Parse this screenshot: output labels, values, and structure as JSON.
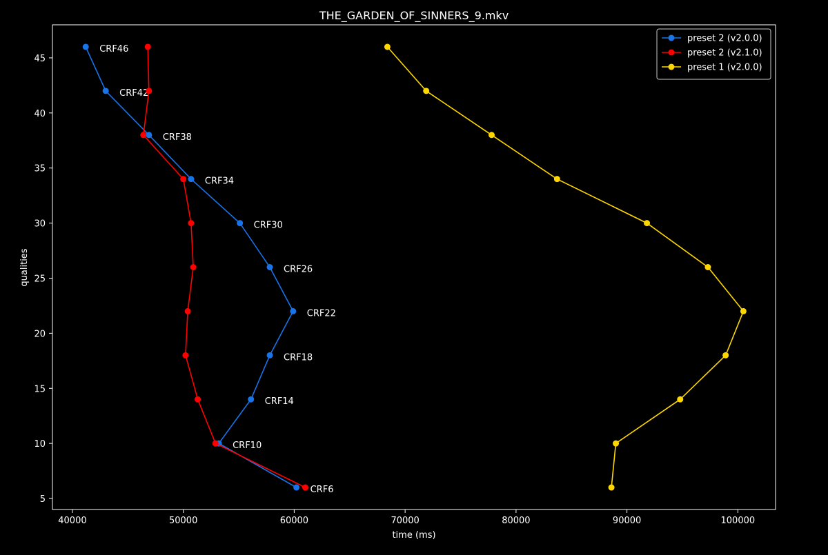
{
  "chart_data": {
    "type": "line",
    "title": "THE_GARDEN_OF_SINNERS_9.mkv",
    "xlabel": "time (ms)",
    "ylabel": "qualities",
    "xlim": [
      38200,
      103400
    ],
    "ylim": [
      4.0,
      48.0
    ],
    "x_ticks": [
      40000,
      50000,
      60000,
      70000,
      80000,
      90000,
      100000
    ],
    "y_ticks": [
      5,
      10,
      15,
      20,
      25,
      30,
      35,
      40,
      45
    ],
    "grid": false,
    "legend_position": "top-right",
    "background": "#000000",
    "series": [
      {
        "name": "preset 2 (v2.0.0)",
        "color": "#1874e8",
        "points": [
          {
            "x": 41200,
            "y": 46,
            "label": "CRF46"
          },
          {
            "x": 43000,
            "y": 42,
            "label": "CRF42"
          },
          {
            "x": 46900,
            "y": 38,
            "label": "CRF38"
          },
          {
            "x": 50700,
            "y": 34,
            "label": "CRF34"
          },
          {
            "x": 55100,
            "y": 30,
            "label": "CRF30"
          },
          {
            "x": 57800,
            "y": 26,
            "label": "CRF26"
          },
          {
            "x": 59900,
            "y": 22,
            "label": "CRF22"
          },
          {
            "x": 57800,
            "y": 18,
            "label": "CRF18"
          },
          {
            "x": 56100,
            "y": 14,
            "label": "CRF14"
          },
          {
            "x": 53200,
            "y": 10,
            "label": "CRF10"
          },
          {
            "x": 60200,
            "y": 6,
            "label": "CRF6"
          }
        ]
      },
      {
        "name": "preset 2 (v2.1.0)",
        "color": "#ff0000",
        "points": [
          {
            "x": 46800,
            "y": 46
          },
          {
            "x": 46900,
            "y": 42
          },
          {
            "x": 46400,
            "y": 38
          },
          {
            "x": 50000,
            "y": 34
          },
          {
            "x": 50700,
            "y": 30
          },
          {
            "x": 50900,
            "y": 26
          },
          {
            "x": 50400,
            "y": 22
          },
          {
            "x": 50200,
            "y": 18
          },
          {
            "x": 51300,
            "y": 14
          },
          {
            "x": 52900,
            "y": 10
          },
          {
            "x": 61000,
            "y": 6
          }
        ]
      },
      {
        "name": "preset 1 (v2.0.0)",
        "color": "#ffd700",
        "points": [
          {
            "x": 68400,
            "y": 46
          },
          {
            "x": 71900,
            "y": 42
          },
          {
            "x": 77800,
            "y": 38
          },
          {
            "x": 83700,
            "y": 34
          },
          {
            "x": 91800,
            "y": 30
          },
          {
            "x": 97300,
            "y": 26
          },
          {
            "x": 100500,
            "y": 22
          },
          {
            "x": 98900,
            "y": 18
          },
          {
            "x": 94800,
            "y": 14
          },
          {
            "x": 89000,
            "y": 10
          },
          {
            "x": 88600,
            "y": 6
          }
        ]
      }
    ]
  }
}
